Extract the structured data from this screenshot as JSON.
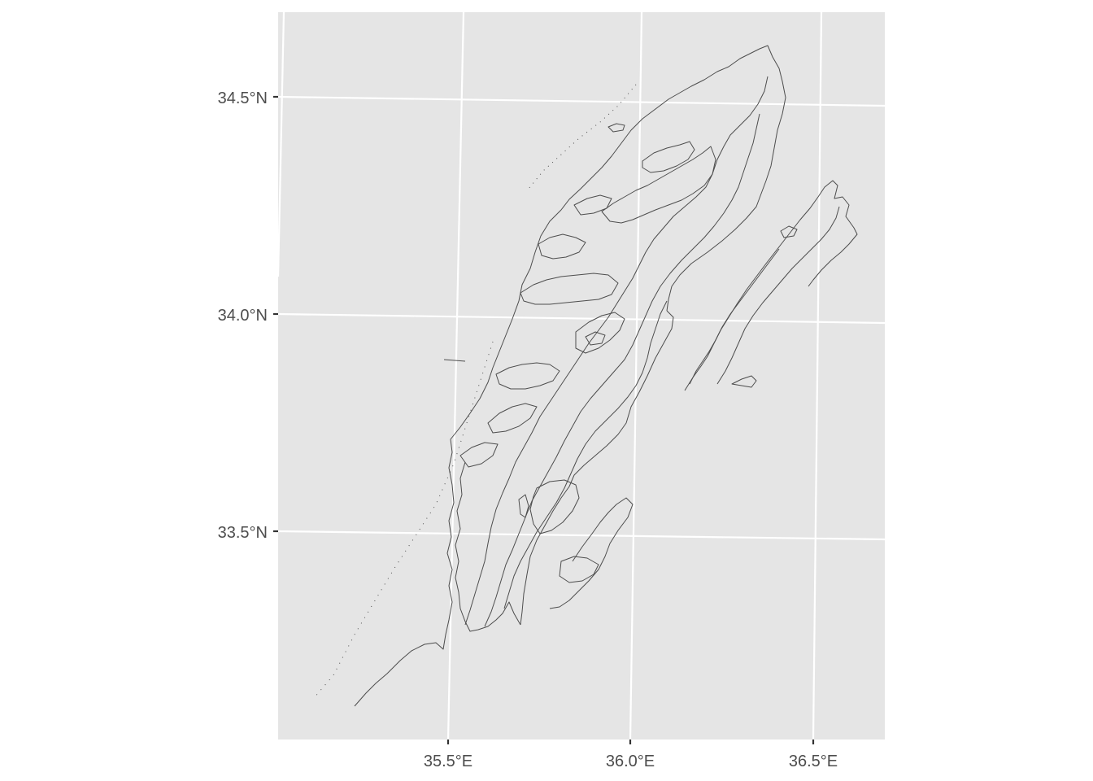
{
  "map": {
    "panel_color": "#e5e5e5",
    "grid_color": "#ffffff",
    "contour_color": "#4d4d4d",
    "tick_color": "#333333",
    "y_ticks": [
      {
        "label": "34.5°N",
        "value": 34.5
      },
      {
        "label": "34.0°N",
        "value": 34.0
      },
      {
        "label": "33.5°N",
        "value": 33.5
      }
    ],
    "x_ticks": [
      {
        "label": "35.5°E",
        "value": 35.5
      },
      {
        "label": "36.0°E",
        "value": 36.0
      },
      {
        "label": "36.5°E",
        "value": 36.5
      }
    ]
  }
}
